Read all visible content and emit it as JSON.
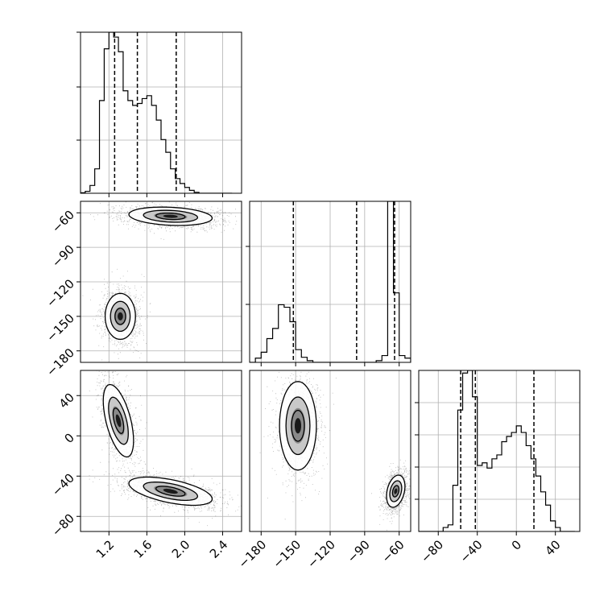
{
  "chart_data": [
    {
      "type": "histogram",
      "panel": "p0_0",
      "variable": 0,
      "xlim": [
        0.9,
        2.6
      ],
      "bins": [
        0.9,
        0.95,
        1.0,
        1.05,
        1.1,
        1.15,
        1.2,
        1.25,
        1.3,
        1.35,
        1.4,
        1.45,
        1.5,
        1.55,
        1.6,
        1.65,
        1.7,
        1.75,
        1.8,
        1.85,
        1.9,
        1.95,
        2.0,
        2.05,
        2.1,
        2.15,
        2.2,
        2.25,
        2.3,
        2.35,
        2.4,
        2.45,
        2.5
      ],
      "counts": [
        0.5,
        2,
        8,
        25,
        95,
        148,
        165,
        160,
        145,
        105,
        95,
        90,
        92,
        97,
        100,
        90,
        75,
        55,
        42,
        25,
        15,
        10,
        6,
        3,
        1,
        0,
        0,
        0,
        0,
        0,
        0,
        0
      ],
      "quantile_lines": [
        1.26,
        1.5,
        1.91
      ],
      "grid": true
    },
    {
      "type": "histogram",
      "panel": "p1_1",
      "variable": 1,
      "xlim": [
        -190,
        -50
      ],
      "bins": [
        -190,
        -185,
        -180,
        -175,
        -170,
        -165,
        -160,
        -155,
        -150,
        -145,
        -140,
        -135,
        -130,
        -125,
        -120,
        -115,
        -110,
        -105,
        -100,
        -95,
        -90,
        -85,
        -80,
        -75,
        -70,
        -65,
        -60,
        -55,
        -50
      ],
      "counts": [
        0,
        5,
        12,
        28,
        40,
        68,
        65,
        48,
        15,
        6,
        2,
        0,
        0,
        0,
        0,
        0,
        0,
        0,
        0,
        0,
        0,
        0,
        2,
        8,
        190,
        82,
        8,
        5
      ],
      "quantile_lines": [
        -152,
        -97,
        -64
      ],
      "grid": true
    },
    {
      "type": "histogram",
      "panel": "p2_2",
      "variable": 2,
      "xlim": [
        -100,
        65
      ],
      "bins": [
        -100,
        -95,
        -90,
        -85,
        -80,
        -75,
        -70,
        -65,
        -60,
        -55,
        -50,
        -45,
        -40,
        -35,
        -30,
        -25,
        -20,
        -15,
        -10,
        -5,
        0,
        5,
        10,
        15,
        20,
        25,
        30,
        35,
        40,
        45,
        50,
        55,
        60
      ],
      "counts": [
        0,
        0,
        0,
        0,
        0,
        3,
        5,
        35,
        92,
        120,
        122,
        102,
        50,
        52,
        48,
        55,
        58,
        68,
        72,
        75,
        80,
        75,
        65,
        55,
        42,
        30,
        20,
        8,
        3,
        0,
        0,
        0
      ],
      "quantile_lines": [
        -57,
        -42,
        18
      ],
      "grid": true
    },
    {
      "type": "scatter",
      "subtype": "2d-density-contour",
      "panel": "p1_0",
      "xvar": 0,
      "yvar": 1,
      "xlim": [
        0.9,
        2.6
      ],
      "ylim": [
        -190,
        -50
      ],
      "modes": [
        {
          "cx": 1.32,
          "cy": -150,
          "sx": 0.08,
          "sy": 10,
          "rho": 0,
          "weight": 0.45
        },
        {
          "cx": 1.85,
          "cy": -63,
          "sx": 0.22,
          "sy": 4,
          "rho": -0.2,
          "weight": 0.55
        }
      ]
    },
    {
      "type": "scatter",
      "subtype": "2d-density-contour",
      "panel": "p2_0",
      "xvar": 0,
      "yvar": 2,
      "xlim": [
        0.9,
        2.6
      ],
      "ylim": [
        -95,
        65
      ],
      "modes": [
        {
          "cx": 1.3,
          "cy": 15,
          "sx": 0.08,
          "sy": 18,
          "rho": -0.55,
          "weight": 0.45
        },
        {
          "cx": 1.85,
          "cy": -55,
          "sx": 0.22,
          "sy": 7,
          "rho": -0.55,
          "weight": 0.55
        }
      ]
    },
    {
      "type": "scatter",
      "subtype": "2d-density-contour",
      "panel": "p2_1",
      "xvar": 1,
      "yvar": 2,
      "xlim": [
        -190,
        -50
      ],
      "ylim": [
        -95,
        65
      ],
      "modes": [
        {
          "cx": -148,
          "cy": 10,
          "sx": 8,
          "sy": 22,
          "rho": 0,
          "weight": 0.45
        },
        {
          "cx": -63,
          "cy": -55,
          "sx": 4,
          "sy": 8,
          "rho": 0.3,
          "weight": 0.55
        }
      ]
    }
  ],
  "axes": {
    "p0_0": {
      "yticks": [
        0.33,
        0.66,
        1.0
      ]
    },
    "p1_0": {
      "yticks": [
        -60,
        -90,
        -120,
        -150,
        -180
      ],
      "yticklabels": [
        "−60",
        "−90",
        "−120",
        "−150",
        "−180"
      ]
    },
    "p1_1": {
      "yticks": [
        0.36,
        0.72
      ]
    },
    "p2_0": {
      "xticks": [
        1.2,
        1.6,
        2.0,
        2.4
      ],
      "xticklabels": [
        "1.2",
        "1.6",
        "2.0",
        "2.4"
      ],
      "yticks": [
        40,
        0,
        -40,
        -80
      ],
      "yticklabels": [
        "40",
        "0",
        "−40",
        "−80"
      ]
    },
    "p2_1": {
      "xticks": [
        -180,
        -150,
        -120,
        -90,
        -60
      ],
      "xticklabels": [
        "−180",
        "−150",
        "−120",
        "−90",
        "−60"
      ]
    },
    "p2_2": {
      "xticks": [
        -80,
        -40,
        0,
        40
      ],
      "xticklabels": [
        "−80",
        "−40",
        "0",
        "40"
      ],
      "yticks": [
        0.2,
        0.4,
        0.6,
        0.8
      ]
    }
  },
  "colors": {
    "line": "#000000",
    "grid": "#b0b0b0",
    "points": "#000000"
  }
}
